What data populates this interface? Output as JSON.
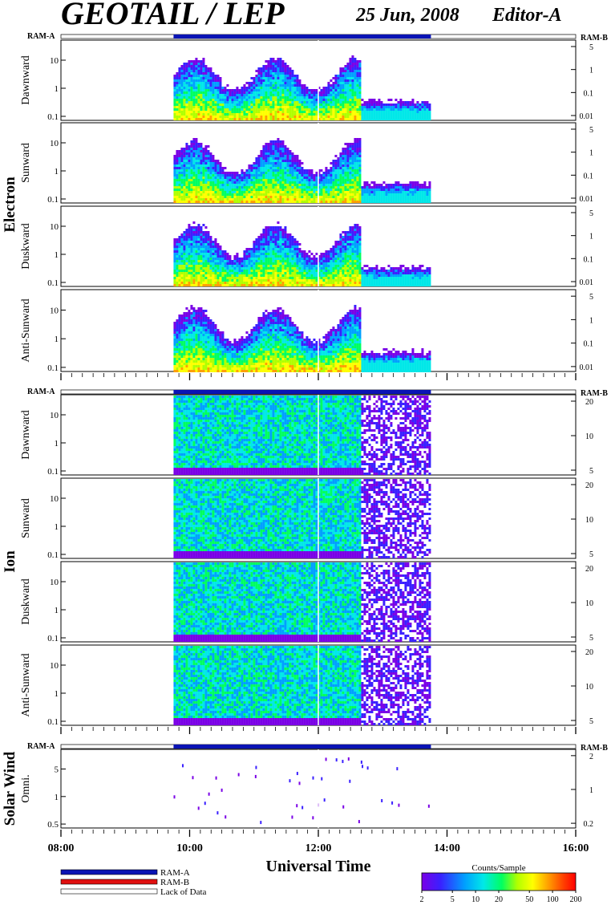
{
  "header": {
    "title": "GEOTAIL / LEP",
    "date": "25 Jun, 2008",
    "editor": "Editor-A"
  },
  "mode_labels": {
    "left": "RAM-A",
    "right": "RAM-B"
  },
  "colors": {
    "ram_a": "#0a14b4",
    "ram_b": "#e01010",
    "colorbar": [
      "#7a00e6",
      "#3a20ff",
      "#00a0ff",
      "#00e8e8",
      "#00ff60",
      "#b0ff00",
      "#ffff00",
      "#ffa000",
      "#ff4000",
      "#ff0000"
    ]
  },
  "chart_data": {
    "type": "heatmap",
    "xlabel": "Universal Time",
    "x_ticks": [
      "08:00",
      "10:00",
      "12:00",
      "14:00",
      "16:00"
    ],
    "x_range_hours": [
      8,
      16
    ],
    "data_interval_hours": [
      9.75,
      13.75
    ],
    "groups": [
      {
        "label": "Electron",
        "panels": [
          {
            "name": "Dawnward",
            "left_ticks": [
              "10",
              "1",
              "0.1"
            ],
            "right_ticks": [
              "5",
              "1",
              "0.1",
              "0.01"
            ]
          },
          {
            "name": "Sunward",
            "left_ticks": [
              "10",
              "1",
              "0.1"
            ],
            "right_ticks": [
              "5",
              "1",
              "0.1",
              "0.01"
            ]
          },
          {
            "name": "Duskward",
            "left_ticks": [
              "10",
              "1",
              "0.1"
            ],
            "right_ticks": [
              "5",
              "1",
              "0.1",
              "0.01"
            ]
          },
          {
            "name": "Anti-Sunward",
            "left_ticks": [
              "10",
              "1",
              "0.1"
            ],
            "right_ticks": [
              "5",
              "1",
              "0.1",
              "0.01"
            ]
          }
        ]
      },
      {
        "label": "Ion",
        "panels": [
          {
            "name": "Dawnward",
            "left_ticks": [
              "10",
              "1",
              "0.1"
            ],
            "right_ticks": [
              "20",
              "10",
              "5"
            ]
          },
          {
            "name": "Sunward",
            "left_ticks": [
              "10",
              "1",
              "0.1"
            ],
            "right_ticks": [
              "20",
              "10",
              "5"
            ]
          },
          {
            "name": "Duskward",
            "left_ticks": [
              "10",
              "1",
              "0.1"
            ],
            "right_ticks": [
              "20",
              "10",
              "5"
            ]
          },
          {
            "name": "Anti-Sunward",
            "left_ticks": [
              "10",
              "1",
              "0.1"
            ],
            "right_ticks": [
              "20",
              "10",
              "5"
            ]
          }
        ]
      },
      {
        "label": "Solar Wind",
        "panels": [
          {
            "name": "Omni.",
            "left_ticks": [
              "5",
              "1",
              "0.5"
            ],
            "right_ticks": [
              "2",
              "1",
              "0.2"
            ]
          }
        ]
      }
    ],
    "colorbar": {
      "title": "Counts/Sample",
      "ticks": [
        "2",
        "5",
        "10",
        "20",
        "50",
        "100",
        "200"
      ],
      "scale": "log"
    },
    "legend": [
      {
        "label": "RAM-A",
        "color": "#0a14b4"
      },
      {
        "label": "RAM-B",
        "color": "#e01010"
      },
      {
        "label": "Lack of Data",
        "color": "#ffffff"
      }
    ]
  }
}
